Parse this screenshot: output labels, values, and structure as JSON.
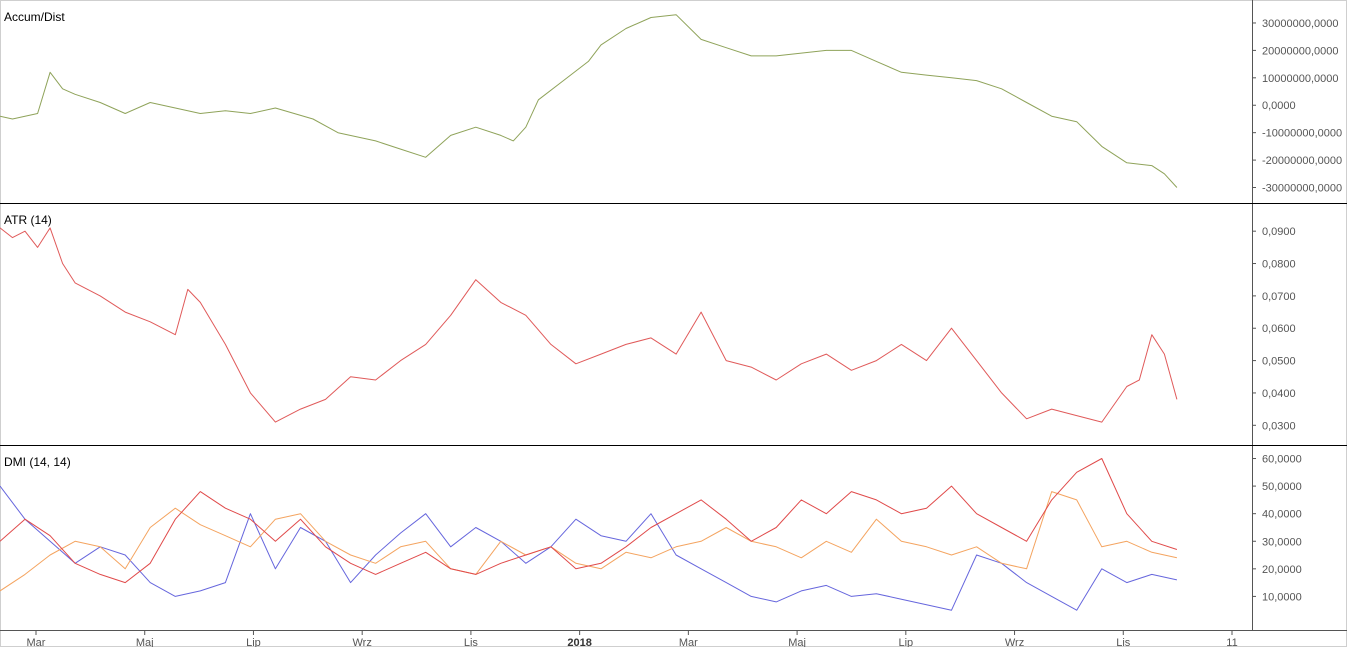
{
  "colors": {
    "accum": "#8fa35a",
    "atr": "#e05a5a",
    "dmi_plus": "#6666dd",
    "dmi_minus": "#f4a460",
    "adx": "#e04a4a",
    "axis": "#555555",
    "divider": "#000000"
  },
  "chart_data": [
    {
      "type": "line",
      "title": "Accum/Dist",
      "ylim": [
        -32000000,
        34000000
      ],
      "yticks": [
        {
          "value": 30000000,
          "label": "30000000,0000"
        },
        {
          "value": 20000000,
          "label": "20000000,0000"
        },
        {
          "value": 10000000,
          "label": "10000000,0000"
        },
        {
          "value": 0,
          "label": "0,0000"
        },
        {
          "value": -10000000,
          "label": "-10000000,0000"
        },
        {
          "value": -20000000,
          "label": "-20000000,0000"
        },
        {
          "value": -30000000,
          "label": "-30000000,0000"
        }
      ],
      "x": [
        0,
        0.01,
        0.02,
        0.03,
        0.04,
        0.05,
        0.06,
        0.08,
        0.1,
        0.12,
        0.14,
        0.16,
        0.18,
        0.2,
        0.22,
        0.25,
        0.27,
        0.3,
        0.32,
        0.34,
        0.36,
        0.38,
        0.4,
        0.41,
        0.42,
        0.43,
        0.45,
        0.47,
        0.48,
        0.5,
        0.52,
        0.54,
        0.56,
        0.58,
        0.6,
        0.62,
        0.64,
        0.66,
        0.68,
        0.7,
        0.72,
        0.74,
        0.76,
        0.78,
        0.8,
        0.82,
        0.84,
        0.86,
        0.88,
        0.9,
        0.92,
        0.93,
        0.94
      ],
      "series": [
        {
          "values": [
            -4000000,
            -5000000,
            -4000000,
            -3000000,
            12000000,
            6000000,
            4000000,
            1000000,
            -3000000,
            1000000,
            -1000000,
            -3000000,
            -2000000,
            -3000000,
            -1000000,
            -5000000,
            -10000000,
            -13000000,
            -16000000,
            -19000000,
            -11000000,
            -8000000,
            -11000000,
            -13000000,
            -8000000,
            2000000,
            9000000,
            16000000,
            22000000,
            28000000,
            32000000,
            33000000,
            24000000,
            21000000,
            18000000,
            18000000,
            19000000,
            20000000,
            20000000,
            16000000,
            12000000,
            11000000,
            10000000,
            9000000,
            6000000,
            1000000,
            -4000000,
            -6000000,
            -15000000,
            -21000000,
            -22000000,
            -25000000,
            -30000000
          ]
        }
      ]
    },
    {
      "type": "line",
      "title": "ATR (14)",
      "ylim": [
        0.027,
        0.095
      ],
      "yticks": [
        {
          "value": 0.09,
          "label": "0,0900"
        },
        {
          "value": 0.08,
          "label": "0,0800"
        },
        {
          "value": 0.07,
          "label": "0,0700"
        },
        {
          "value": 0.06,
          "label": "0,0600"
        },
        {
          "value": 0.05,
          "label": "0,0500"
        },
        {
          "value": 0.04,
          "label": "0,0400"
        },
        {
          "value": 0.03,
          "label": "0,0300"
        }
      ],
      "x": [
        0,
        0.01,
        0.02,
        0.03,
        0.04,
        0.05,
        0.06,
        0.08,
        0.1,
        0.12,
        0.14,
        0.15,
        0.16,
        0.18,
        0.2,
        0.22,
        0.24,
        0.26,
        0.28,
        0.3,
        0.32,
        0.34,
        0.36,
        0.38,
        0.4,
        0.42,
        0.44,
        0.46,
        0.48,
        0.5,
        0.52,
        0.54,
        0.56,
        0.58,
        0.6,
        0.62,
        0.64,
        0.66,
        0.68,
        0.7,
        0.72,
        0.74,
        0.76,
        0.78,
        0.8,
        0.82,
        0.84,
        0.86,
        0.88,
        0.9,
        0.91,
        0.92,
        0.93,
        0.94
      ],
      "series": [
        {
          "values": [
            0.091,
            0.088,
            0.09,
            0.085,
            0.091,
            0.08,
            0.074,
            0.07,
            0.065,
            0.062,
            0.058,
            0.072,
            0.068,
            0.055,
            0.04,
            0.031,
            0.035,
            0.038,
            0.045,
            0.044,
            0.05,
            0.055,
            0.064,
            0.075,
            0.068,
            0.064,
            0.055,
            0.049,
            0.052,
            0.055,
            0.057,
            0.052,
            0.065,
            0.05,
            0.048,
            0.044,
            0.049,
            0.052,
            0.047,
            0.05,
            0.055,
            0.05,
            0.06,
            0.05,
            0.04,
            0.032,
            0.035,
            0.033,
            0.031,
            0.042,
            0.044,
            0.058,
            0.052,
            0.038
          ]
        }
      ]
    },
    {
      "type": "line",
      "title": "DMI (14, 14)",
      "ylim": [
        0,
        62
      ],
      "yticks": [
        {
          "value": 60,
          "label": "60,0000"
        },
        {
          "value": 50,
          "label": "50,0000"
        },
        {
          "value": 40,
          "label": "40,0000"
        },
        {
          "value": 30,
          "label": "30,0000"
        },
        {
          "value": 20,
          "label": "20,0000"
        },
        {
          "value": 10,
          "label": "10,0000"
        }
      ],
      "x": [
        0,
        0.02,
        0.04,
        0.06,
        0.08,
        0.1,
        0.12,
        0.14,
        0.16,
        0.18,
        0.2,
        0.22,
        0.24,
        0.26,
        0.28,
        0.3,
        0.32,
        0.34,
        0.36,
        0.38,
        0.4,
        0.42,
        0.44,
        0.46,
        0.48,
        0.5,
        0.52,
        0.54,
        0.56,
        0.58,
        0.6,
        0.62,
        0.64,
        0.66,
        0.68,
        0.7,
        0.72,
        0.74,
        0.76,
        0.78,
        0.8,
        0.82,
        0.84,
        0.86,
        0.88,
        0.9,
        0.92,
        0.94
      ],
      "series": [
        {
          "values": [
            50,
            38,
            30,
            22,
            28,
            25,
            15,
            10,
            12,
            15,
            40,
            20,
            35,
            30,
            15,
            25,
            33,
            40,
            28,
            35,
            30,
            22,
            28,
            38,
            32,
            30,
            40,
            25,
            20,
            15,
            10,
            8,
            12,
            14,
            10,
            11,
            9,
            7,
            5,
            25,
            22,
            15,
            10,
            5,
            20,
            15,
            18,
            16
          ]
        },
        {
          "values": [
            12,
            18,
            25,
            30,
            28,
            20,
            35,
            42,
            36,
            32,
            28,
            38,
            40,
            30,
            25,
            22,
            28,
            30,
            20,
            18,
            30,
            25,
            28,
            22,
            20,
            26,
            24,
            28,
            30,
            35,
            30,
            28,
            24,
            30,
            26,
            38,
            30,
            28,
            25,
            28,
            22,
            20,
            48,
            45,
            28,
            30,
            26,
            24
          ]
        },
        {
          "values": [
            30,
            38,
            32,
            22,
            18,
            15,
            22,
            38,
            48,
            42,
            38,
            30,
            38,
            28,
            22,
            18,
            22,
            26,
            20,
            18,
            22,
            25,
            28,
            20,
            22,
            28,
            35,
            40,
            45,
            38,
            30,
            35,
            45,
            40,
            48,
            45,
            40,
            42,
            50,
            40,
            35,
            30,
            45,
            55,
            60,
            40,
            30,
            27
          ]
        }
      ]
    }
  ],
  "x_axis": {
    "labels": [
      {
        "text": "Mar",
        "bold": false
      },
      {
        "text": "Maj",
        "bold": false
      },
      {
        "text": "Lip",
        "bold": false
      },
      {
        "text": "Wrz",
        "bold": false
      },
      {
        "text": "Lis",
        "bold": false
      },
      {
        "text": "2018",
        "bold": true
      },
      {
        "text": "Mar",
        "bold": false
      },
      {
        "text": "Maj",
        "bold": false
      },
      {
        "text": "Lip",
        "bold": false
      },
      {
        "text": "Wrz",
        "bold": false
      },
      {
        "text": "Lis",
        "bold": false
      },
      {
        "text": "11",
        "bold": false
      }
    ]
  }
}
